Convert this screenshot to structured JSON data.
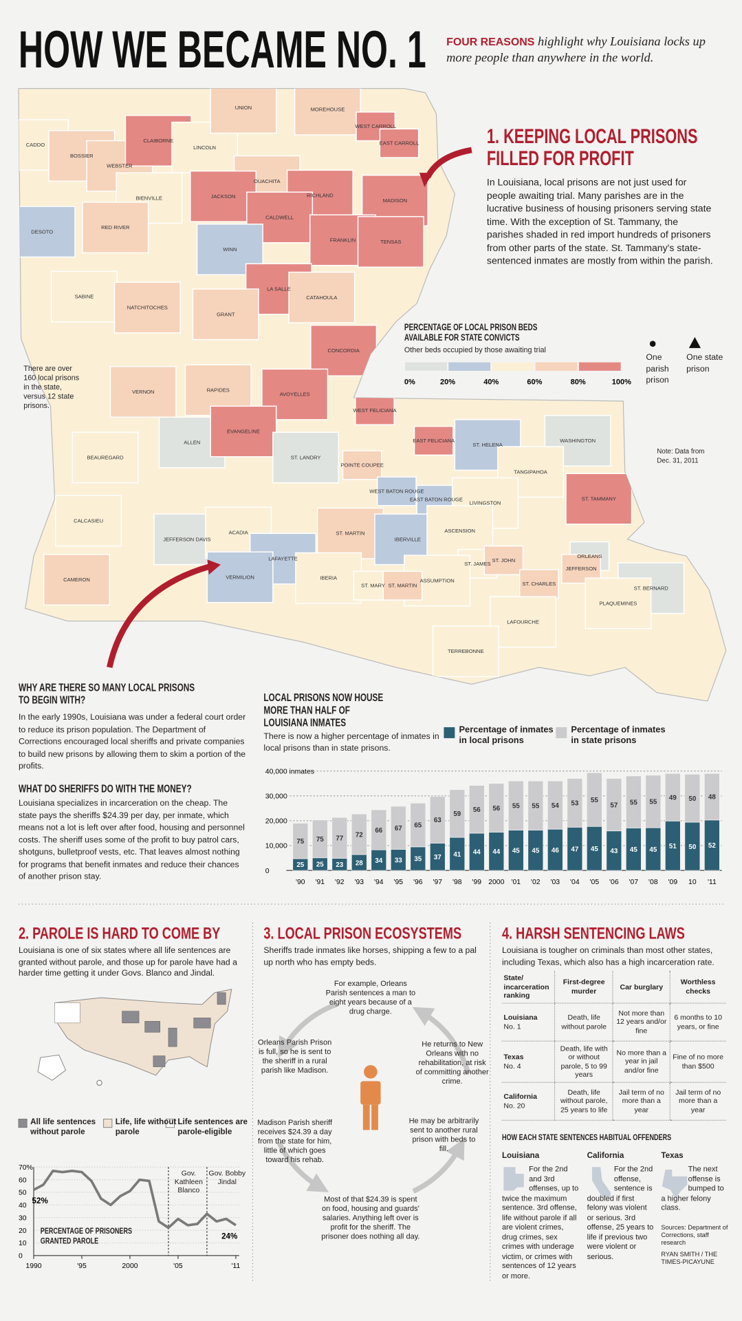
{
  "header": {
    "title": "HOW WE BECAME NO. 1",
    "subtitle_lead": "FOUR REASONS",
    "subtitle": "highlight why Louisiana locks up more people than anywhere in the world."
  },
  "section1": {
    "heading": "1. KEEPING LOCAL PRISONS FILLED FOR PROFIT",
    "body": "In Louisiana, local prisons are not just used for people awaiting trial. Many parishes are in the lucrative business of housing prisoners serving state time. With the exception of St. Tammany, the parishes shaded in red import hundreds of prisoners from other parts of the state. St. Tammany's state-sentenced inmates are mostly from within the parish."
  },
  "map": {
    "legend_title": "PERCENTAGE OF LOCAL PRISON BEDS AVAILABLE FOR STATE CONVICTS",
    "legend_subtitle": "Other beds occupied by those awaiting trial",
    "legend_ticks": [
      {
        "value": 0,
        "label": "0%"
      },
      {
        "value": 20,
        "label": "20%"
      },
      {
        "value": 40,
        "label": "40%"
      },
      {
        "value": 60,
        "label": "60%"
      },
      {
        "value": 80,
        "label": "80%"
      },
      {
        "value": 100,
        "label": "100%"
      }
    ],
    "legend_colors": [
      "#dfe3df",
      "#bccadd",
      "#fbf0d6",
      "#f6d3bb",
      "#e48884"
    ],
    "symbol_parish": "One parish prison",
    "symbol_state": "One state prison",
    "side_note": "There are over 160 local prisons in the state, versus 12 state prisons.",
    "note": "Note: Data from Dec. 31, 2011",
    "parishes": [
      {
        "name": "CADDO",
        "color": "#fbf0d6"
      },
      {
        "name": "BOSSIER",
        "color": "#f6d3bb"
      },
      {
        "name": "WEBSTER",
        "color": "#f6d3bb"
      },
      {
        "name": "CLAIBORNE",
        "color": "#e48884"
      },
      {
        "name": "LINCOLN",
        "color": "#fbf0d6"
      },
      {
        "name": "UNION",
        "color": "#f6d3bb"
      },
      {
        "name": "MOREHOUSE",
        "color": "#f6d3bb"
      },
      {
        "name": "WEST CARROLL",
        "color": "#e48884"
      },
      {
        "name": "EAST CARROLL",
        "color": "#e48884"
      },
      {
        "name": "OUACHITA",
        "color": "#f6d3bb"
      },
      {
        "name": "RICHLAND",
        "color": "#e48884"
      },
      {
        "name": "MADISON",
        "color": "#e48884"
      },
      {
        "name": "BIENVILLE",
        "color": "#fbf0d6"
      },
      {
        "name": "JACKSON",
        "color": "#e48884"
      },
      {
        "name": "DESOTO",
        "color": "#bccadd"
      },
      {
        "name": "RED RIVER",
        "color": "#f6d3bb"
      },
      {
        "name": "CALDWELL",
        "color": "#e48884"
      },
      {
        "name": "FRANKLIN",
        "color": "#e48884"
      },
      {
        "name": "TENSAS",
        "color": "#e48884"
      },
      {
        "name": "WINN",
        "color": "#bccadd"
      },
      {
        "name": "LA SALLE",
        "color": "#e48884"
      },
      {
        "name": "CATAHOULA",
        "color": "#f6d3bb"
      },
      {
        "name": "SABINE",
        "color": "#fbf0d6"
      },
      {
        "name": "NATCHITOCHES",
        "color": "#f6d3bb"
      },
      {
        "name": "GRANT",
        "color": "#f6d3bb"
      },
      {
        "name": "CONCORDIA",
        "color": "#e48884"
      },
      {
        "name": "RAPIDES",
        "color": "#f6d3bb"
      },
      {
        "name": "VERNON",
        "color": "#f6d3bb"
      },
      {
        "name": "AVOYELLES",
        "color": "#e48884"
      },
      {
        "name": "WEST FELICIANA",
        "color": "#e48884"
      },
      {
        "name": "EAST FELICIANA",
        "color": "#e48884"
      },
      {
        "name": "ST. HELENA",
        "color": "#bccadd"
      },
      {
        "name": "WASHINGTON",
        "color": "#dfe3df"
      },
      {
        "name": "BEAUREGARD",
        "color": "#fbf0d6"
      },
      {
        "name": "ALLEN",
        "color": "#dfe3df"
      },
      {
        "name": "EVANGELINE",
        "color": "#e48884"
      },
      {
        "name": "ST. LANDRY",
        "color": "#dfe3df"
      },
      {
        "name": "POINTE COUPEE",
        "color": "#f6d3bb"
      },
      {
        "name": "WEST BATON ROUGE",
        "color": "#bccadd"
      },
      {
        "name": "EAST BATON ROUGE",
        "color": "#bccadd"
      },
      {
        "name": "TANGIPAHOA",
        "color": "#fbf0d6"
      },
      {
        "name": "ST. TAMMANY",
        "color": "#e48884"
      },
      {
        "name": "LIVINGSTON",
        "color": "#fbf0d6"
      },
      {
        "name": "CALCASIEU",
        "color": "#fbf0d6"
      },
      {
        "name": "JEFFERSON DAVIS",
        "color": "#dfe3df"
      },
      {
        "name": "ACADIA",
        "color": "#fbf0d6"
      },
      {
        "name": "LAFAYETTE",
        "color": "#bccadd"
      },
      {
        "name": "ST. MARTIN",
        "color": "#f6d3bb"
      },
      {
        "name": "IBERVILLE",
        "color": "#bccadd"
      },
      {
        "name": "ASCENSION",
        "color": "#fbf0d6"
      },
      {
        "name": "CAMERON",
        "color": "#f6d3bb"
      },
      {
        "name": "VERMILION",
        "color": "#bccadd"
      },
      {
        "name": "IBERIA",
        "color": "#fbf0d6"
      },
      {
        "name": "ST. JAMES",
        "color": "#fbf0d6"
      },
      {
        "name": "ST. JOHN",
        "color": "#f6d3bb"
      },
      {
        "name": "ORLEANS",
        "color": "#dfe3df"
      },
      {
        "name": "JEFFERSON",
        "color": "#f6d3bb"
      },
      {
        "name": "ST. CHARLES",
        "color": "#f6d3bb"
      },
      {
        "name": "ST. BERNARD",
        "color": "#dfe3df"
      },
      {
        "name": "ASSUMPTION",
        "color": "#fbf0d6"
      },
      {
        "name": "ST. MARY",
        "color": "#fbf0d6"
      },
      {
        "name": "ST. MARTIN",
        "color": "#f6d3bb"
      },
      {
        "name": "PLAQUEMINES",
        "color": "#fbf0d6"
      },
      {
        "name": "LAFOURCHE",
        "color": "#fbf0d6"
      },
      {
        "name": "TERREBONNE",
        "color": "#fbf0d6"
      }
    ]
  },
  "sidebar": {
    "q1": "WHY ARE THERE SO MANY LOCAL PRISONS TO BEGIN WITH?",
    "a1": "In the early 1990s, Louisiana was under a federal court order to reduce its prison population. The Department of Corrections encouraged local sheriffs and private companies to build new prisons by allowing them to skim a portion of the profits.",
    "q2": "WHAT DO SHERIFFS DO WITH THE MONEY?",
    "a2": "Louisiana specializes in incarceration on the cheap. The state pays the sheriffs $24.39 per day, per inmate, which means not a lot is left over after food, housing and personnel costs. The sheriff uses some of the profit to buy patrol cars, shotguns, bulletproof vests, etc. That leaves almost nothing for programs that benefit inmates and reduce their chances of another prison stay."
  },
  "chart_data": [
    {
      "type": "bar",
      "stacked": true,
      "title": "LOCAL PRISONS NOW HOUSE MORE THAN HALF OF LOUISIANA INMATES",
      "subtitle": "There is now a higher percentage of inmates in local prisons than in state prisons.",
      "categories": [
        "'90",
        "'91",
        "'92",
        "'93",
        "'94",
        "'95",
        "'96",
        "'97",
        "'98",
        "'99",
        "2000",
        "'01",
        "'02",
        "'03",
        "'04",
        "'05",
        "'06",
        "'07",
        "'08",
        "'09",
        "10",
        "'11"
      ],
      "series": [
        {
          "name": "Percentage of inmates in local prisons",
          "color": "#2c5f74",
          "values": [
            4750,
            5100,
            4900,
            6400,
            8300,
            8500,
            9500,
            11000,
            13300,
            15000,
            15400,
            16200,
            16200,
            16600,
            17400,
            17700,
            15900,
            17100,
            17200,
            19900,
            19400,
            20300
          ],
          "shares": [
            25,
            25,
            23,
            28,
            34,
            33,
            35,
            37,
            41,
            44,
            44,
            45,
            45,
            46,
            47,
            45,
            43,
            45,
            45,
            51,
            50,
            52
          ]
        },
        {
          "name": "Percentage of inmates in state prisons",
          "color": "#cbcacd",
          "values": [
            14250,
            15200,
            16400,
            16300,
            16100,
            17300,
            17600,
            18800,
            19200,
            19200,
            19600,
            19800,
            19800,
            19400,
            19600,
            21600,
            21100,
            20900,
            21100,
            19100,
            19300,
            18700
          ],
          "shares": [
            75,
            75,
            77,
            72,
            66,
            67,
            65,
            63,
            59,
            56,
            56,
            55,
            55,
            54,
            53,
            55,
            57,
            55,
            55,
            49,
            50,
            48
          ]
        }
      ],
      "ylim": [
        0,
        40000
      ],
      "yticks": [
        0,
        {
          "value": 10000,
          "label": "10,000"
        },
        {
          "value": 20000,
          "label": "20,000"
        },
        {
          "value": 30000,
          "label": "30,000"
        },
        {
          "value": 40000,
          "label": "40,000 inmates"
        }
      ],
      "grid": true
    },
    {
      "type": "line",
      "title": "PERCENTAGE OF PRISONERS GRANTED PAROLE",
      "x": [
        1990,
        1991,
        1992,
        1993,
        1994,
        1995,
        1996,
        1997,
        1998,
        1999,
        2000,
        2001,
        2002,
        2003,
        2004,
        2005,
        2006,
        2007,
        2008,
        2009,
        2010,
        2011
      ],
      "values": [
        52,
        56,
        67,
        66,
        67,
        66,
        59,
        45,
        40,
        47,
        51,
        60,
        59,
        27,
        22,
        29,
        24,
        25,
        33,
        27,
        29,
        24
      ],
      "value_labels": [
        "52%",
        null,
        null,
        null,
        null,
        null,
        null,
        null,
        null,
        null,
        null,
        null,
        null,
        null,
        null,
        null,
        null,
        null,
        null,
        null,
        null,
        "24%"
      ],
      "color": "#7a7a7a",
      "xlim": [
        1990,
        2011
      ],
      "xticks": [
        1990,
        {
          "value": 1995,
          "label": "'95"
        },
        2000,
        {
          "value": 2005,
          "label": "'05"
        },
        {
          "value": 2011,
          "label": "'11"
        }
      ],
      "ylim": [
        0,
        70
      ],
      "yticks": [
        0,
        10,
        20,
        30,
        40,
        50,
        60,
        {
          "value": 70,
          "label": "70%"
        }
      ],
      "annotations": [
        {
          "x": 2004,
          "label": "Gov. Kathleen Blanco"
        },
        {
          "x": 2008,
          "label": "Gov. Bobby Jindal"
        }
      ],
      "grid": true
    }
  ],
  "section2": {
    "heading": "2. PAROLE IS HARD TO COME BY",
    "body": "Louisiana is one of six states where all life sentences are granted without parole, and those up for parole have had a harder time getting it under Govs. Blanco and Jindal.",
    "map_legend": [
      {
        "label": "All life sentences without parole",
        "color": "#8b8b90"
      },
      {
        "label": "Life, life without parole",
        "color": "#f0e2d2"
      },
      {
        "label": "Life sentences are parole-eligible",
        "color": "#ffffff"
      }
    ]
  },
  "section3": {
    "heading": "3. LOCAL PRISON ECOSYSTEMS",
    "body": "Sheriffs trade inmates like horses, shipping a few to a pal up north who has empty beds.",
    "steps": [
      "For example, Orleans Parish sentences a man to eight years because of a drug charge.",
      "Orleans Parish Prison is full, so he is sent to the sheriff in a rural parish like Madison.",
      "Madison Parish sheriff receives $24.39 a day from the state for him, little of which goes toward his rehab.",
      "Most of that $24.39 is spent on food, housing and guards' salaries. Anything left over is profit for the sheriff. The prisoner does nothing all day.",
      "He may be arbitrarily sent to another rural prison with beds to fill.",
      "He returns to New Orleans with no rehabilitation, at risk of committing another crime."
    ]
  },
  "section4": {
    "heading": "4. HARSH SENTENCING LAWS",
    "body": "Louisiana is tougher on criminals than most other states, including Texas, which also has a high incarceration rate.",
    "table": {
      "header": [
        "State/ incarceration ranking",
        "First-degree murder",
        "Car burglary",
        "Worthless checks"
      ],
      "rows": [
        {
          "state": "Louisiana",
          "rank": "No. 1",
          "cells": [
            "Death, life without parole",
            "Not more than 12 years and/or fine",
            "6 months to 10 years, or fine"
          ]
        },
        {
          "state": "Texas",
          "rank": "No. 4",
          "cells": [
            "Death, life with or without parole, 5 to 99 years",
            "No more than a year in jail and/or fine",
            "Fine of no more than $500"
          ]
        },
        {
          "state": "California",
          "rank": "No. 20",
          "cells": [
            "Death, life without parole, 25 years to life",
            "Jail term of no more than a year",
            "Jail term of no more than a year"
          ]
        }
      ]
    },
    "habitual_heading": "HOW EACH STATE SENTENCES HABITUAL OFFENDERS",
    "habitual": [
      {
        "state": "Louisiana",
        "text": "For the 2nd and 3rd offenses, up to twice the maximum sentence. 3rd offense, life without parole if all are violent crimes, drug crimes, sex crimes with underage victim, or crimes with sentences of 12 years or more."
      },
      {
        "state": "California",
        "text": "For the 2nd offense, sentence is doubled if first felony was violent or serious. 3rd offense, 25 years to life if previous two were violent or serious."
      },
      {
        "state": "Texas",
        "text": "The next offense is bumped to a higher felony class."
      }
    ],
    "sources": "Sources: Department of Corrections, staff research",
    "credit": "RYAN SMITH / THE TIMES-PICAYUNE"
  }
}
